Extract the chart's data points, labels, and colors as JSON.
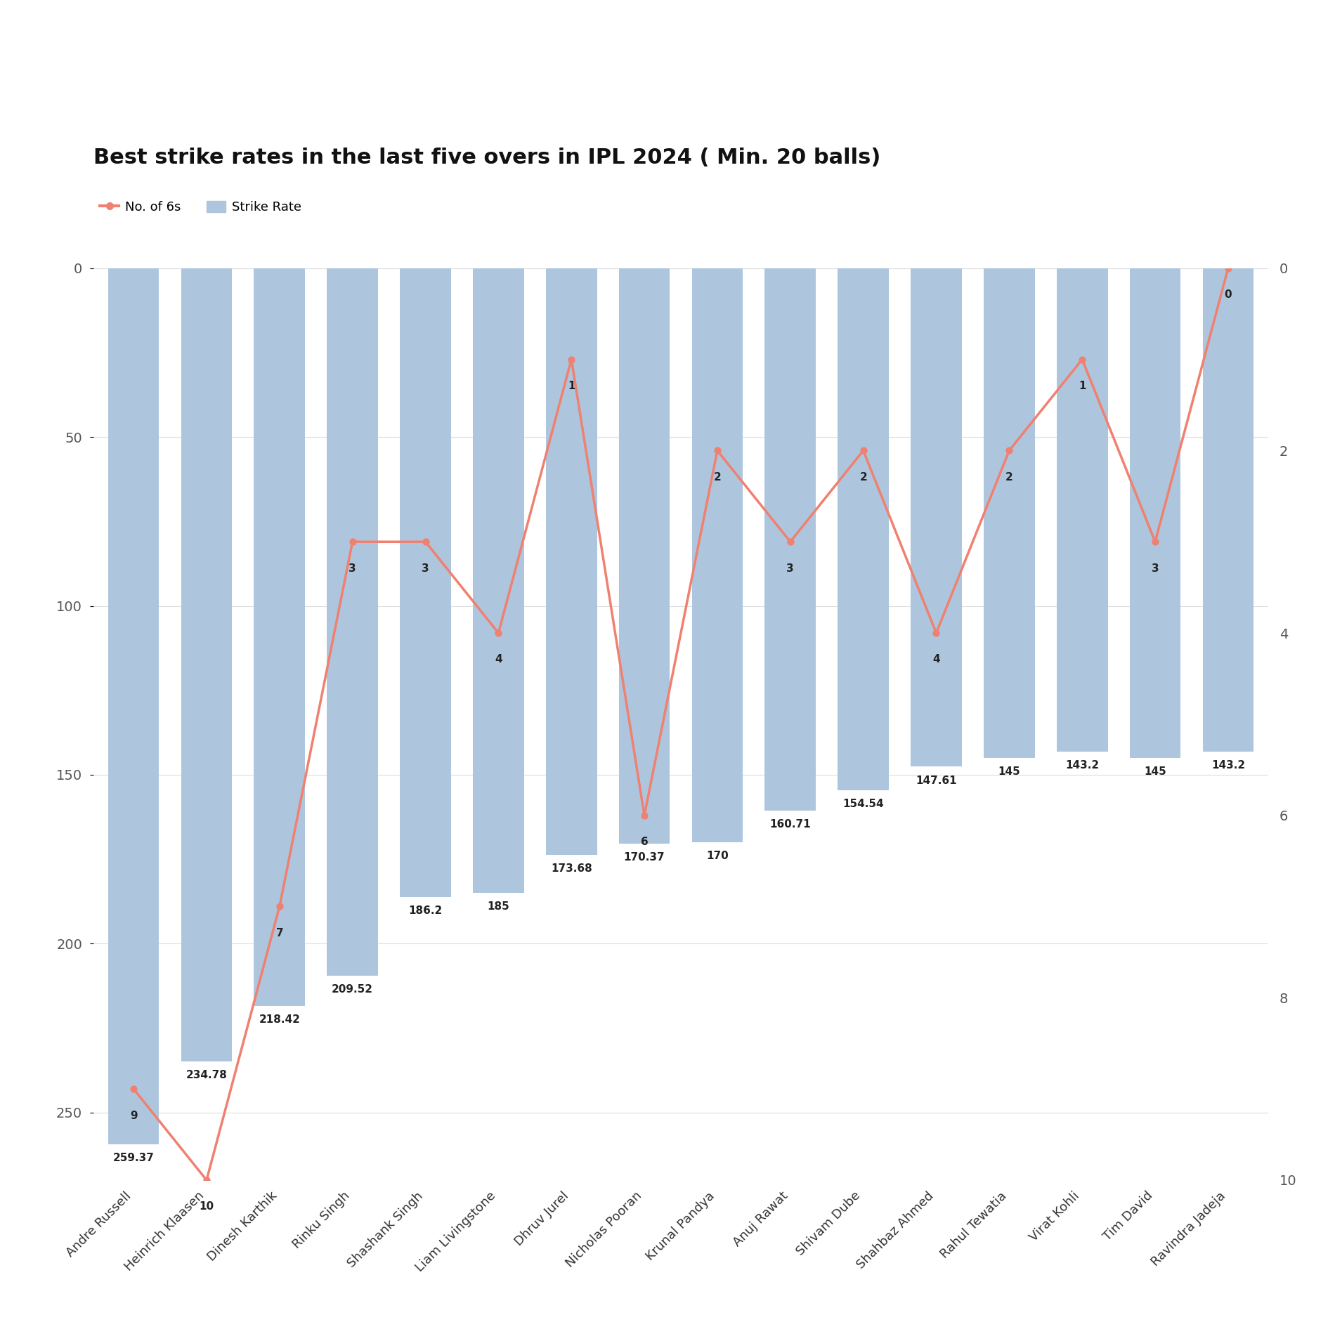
{
  "title": "Best strike rates in the last five overs in IPL 2024 ( Min. 20 balls)",
  "players": [
    "Andre Russell",
    "Heinrich Klaasen",
    "Dinesh Karthik",
    "Rinku Singh",
    "Shashank Singh",
    "Liam Livingstone",
    "Dhruv Jurel",
    "Nicholas Pooran",
    "Krunal Pandya",
    "Anuj Rawat",
    "Shivam Dube",
    "Shahbaz Ahmed",
    "Rahul Tewatia",
    "Virat Kohli",
    "Tim David",
    "Ravindra Jadeja"
  ],
  "strike_rates": [
    259.37,
    234.78,
    218.42,
    209.52,
    186.2,
    185.0,
    173.68,
    170.37,
    170.0,
    160.71,
    154.54,
    147.61,
    145.0,
    143.2,
    145.0,
    143.2
  ],
  "strike_rate_labels": [
    "259.37",
    "234.78",
    "218.42",
    "209.52",
    "186.2",
    "185",
    "173.68",
    "170.37",
    "170",
    "160.71",
    "154.54",
    "147.61",
    "145",
    "143.2",
    "145",
    "143.2"
  ],
  "num_sixes": [
    9,
    10,
    7,
    3,
    3,
    4,
    1,
    6,
    2,
    3,
    2,
    4,
    2,
    1,
    3,
    0
  ],
  "bar_color": "#adc6de",
  "line_color": "#f08070",
  "marker_color": "#f08070",
  "background_color": "#ffffff",
  "grid_color": "#dddddd",
  "left_yticks": [
    0,
    50,
    100,
    150,
    200,
    250
  ],
  "left_ylim": [
    270,
    0
  ],
  "right_yticks": [
    0,
    2,
    4,
    6,
    8,
    10
  ],
  "right_ylim": [
    0,
    10
  ],
  "figsize": [
    19.0,
    19.09
  ],
  "dpi": 100
}
